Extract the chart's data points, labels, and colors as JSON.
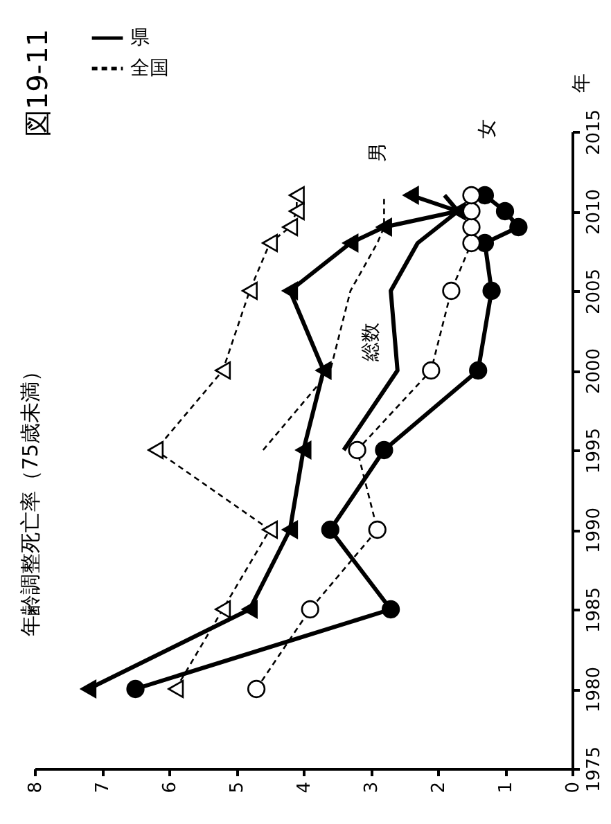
{
  "chart_data": {
    "type": "line",
    "title": "図19-11",
    "subtitle": "年齢調整死亡率（75歳未満）",
    "ylabel": "年",
    "xlim": [
      8,
      0
    ],
    "xticks": [
      8,
      7,
      6,
      5,
      4,
      3,
      2,
      1,
      0
    ],
    "ylim": [
      1975,
      2015
    ],
    "yticks": [
      1975,
      1980,
      1985,
      1990,
      1995,
      2000,
      2005,
      2010,
      2015
    ],
    "grid": false,
    "legend": "top left",
    "series": [
      {
        "name": "県",
        "color": "#000000",
        "line_style": "solid",
        "marker": "triangle",
        "x": [
          7.2,
          4.8,
          4.2,
          4.0,
          3.7,
          4.2,
          3.3,
          2.8,
          1.7,
          2.4
        ],
        "values": [
          1980,
          1985,
          1990,
          1995,
          2000,
          2005,
          2008,
          2009,
          2010,
          2011
        ]
      },
      {
        "name": "全国",
        "color": "#000000",
        "line_style": "dashed",
        "marker": "triangle",
        "x": [
          5.9,
          5.2,
          4.5,
          6.2,
          5.2,
          4.8,
          4.5,
          4.2,
          4.1,
          4.1
        ],
        "values": [
          1980,
          1985,
          1990,
          1995,
          2000,
          2005,
          2008,
          2009,
          2010,
          2011
        ]
      },
      {
        "color": "#000000",
        "line_style": "solid",
        "marker": "none",
        "x": [
          3.4,
          2.6,
          2.7,
          2.3,
          1.7,
          1.9
        ],
        "values": [
          1995,
          2000,
          2005,
          2008,
          2010,
          2011
        ]
      },
      {
        "color": "#000000",
        "line_style": "dashed",
        "marker": "none",
        "x": [
          4.6,
          3.6,
          3.3,
          2.9,
          2.8,
          2.8
        ],
        "values": [
          1995,
          2000,
          2005,
          2008,
          2009,
          2011
        ]
      },
      {
        "color": "#000000",
        "line_style": "solid",
        "marker": "circle",
        "x": [
          6.5,
          2.7,
          3.6,
          2.8,
          1.4,
          1.2,
          1.3,
          0.8,
          1.0,
          1.3
        ],
        "values": [
          1980,
          1985,
          1990,
          1995,
          2000,
          2005,
          2008,
          2009,
          2010,
          2011
        ]
      },
      {
        "color": "#000000",
        "line_style": "dashed",
        "marker": "circle",
        "x": [
          4.7,
          3.9,
          2.9,
          3.2,
          2.1,
          1.8,
          1.5,
          1.5,
          1.5,
          1.5
        ],
        "values": [
          1980,
          1985,
          1990,
          1995,
          2000,
          2005,
          2008,
          2009,
          2010,
          2011
        ]
      }
    ],
    "annotations": [
      "男",
      "総数",
      "女"
    ]
  }
}
